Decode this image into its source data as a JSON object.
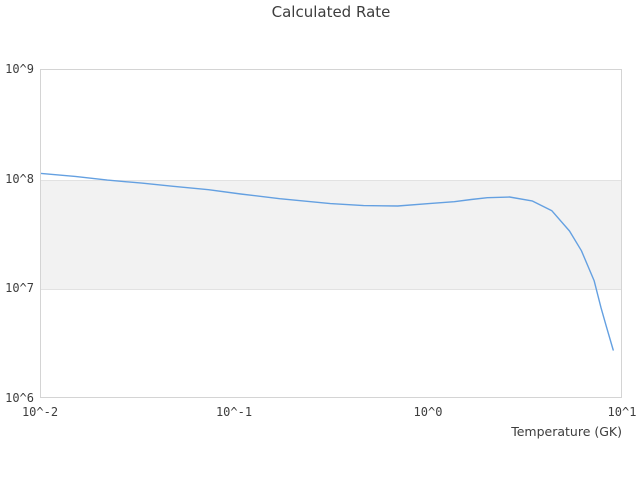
{
  "colors": {
    "background": "#ffffff",
    "plot_border": "#d4d4d4",
    "gridline": "#e2e2e2",
    "band_fill": "#f2f2f2",
    "text": "#3d3d3d",
    "line": "#64a0e1"
  },
  "chart_data": {
    "type": "line",
    "title": "Calculated Rate",
    "xlabel": "Temperature (GK)",
    "ylabel": "",
    "x_scale": "log",
    "y_scale": "log",
    "xlim": [
      0.01,
      10
    ],
    "ylim": [
      1000000,
      1000000000
    ],
    "grid": "horizontal-only",
    "legend": "none",
    "x_ticks": {
      "labels": [
        "10^-2",
        "10^-1",
        "10^0",
        "10^1"
      ],
      "values": [
        0.01,
        0.1,
        1,
        10
      ]
    },
    "y_ticks": {
      "labels": [
        "10^6",
        "10^7",
        "10^8",
        "10^9"
      ],
      "values": [
        1000000,
        10000000,
        100000000,
        1000000000
      ]
    },
    "shaded_band": {
      "y_from": 10000000,
      "y_to": 100000000,
      "color": "#f2f2f2"
    },
    "series": [
      {
        "name": "Calculated Rate",
        "color": "#64a0e1",
        "points": [
          [
            0.01,
            114000000.0
          ],
          [
            0.015,
            107000000.0
          ],
          [
            0.022,
            99000000.0
          ],
          [
            0.033,
            93000000.0
          ],
          [
            0.048,
            87000000.0
          ],
          [
            0.073,
            81000000.0
          ],
          [
            0.107,
            74000000.0
          ],
          [
            0.17,
            67000000.0
          ],
          [
            0.31,
            60500000.0
          ],
          [
            0.46,
            58000000.0
          ],
          [
            0.69,
            57500000.0
          ],
          [
            1.0,
            60500000.0
          ],
          [
            1.35,
            63000000.0
          ],
          [
            1.65,
            66000000.0
          ],
          [
            2.0,
            68500000.0
          ],
          [
            2.6,
            69500000.0
          ],
          [
            3.4,
            64000000.0
          ],
          [
            4.3,
            52000000.0
          ],
          [
            5.3,
            34000000.0
          ],
          [
            6.1,
            22500000.0
          ],
          [
            7.1,
            12000000.0
          ],
          [
            7.7,
            6800000.0
          ],
          [
            8.2,
            4600000.0
          ],
          [
            8.9,
            2800000.0
          ]
        ]
      }
    ]
  }
}
